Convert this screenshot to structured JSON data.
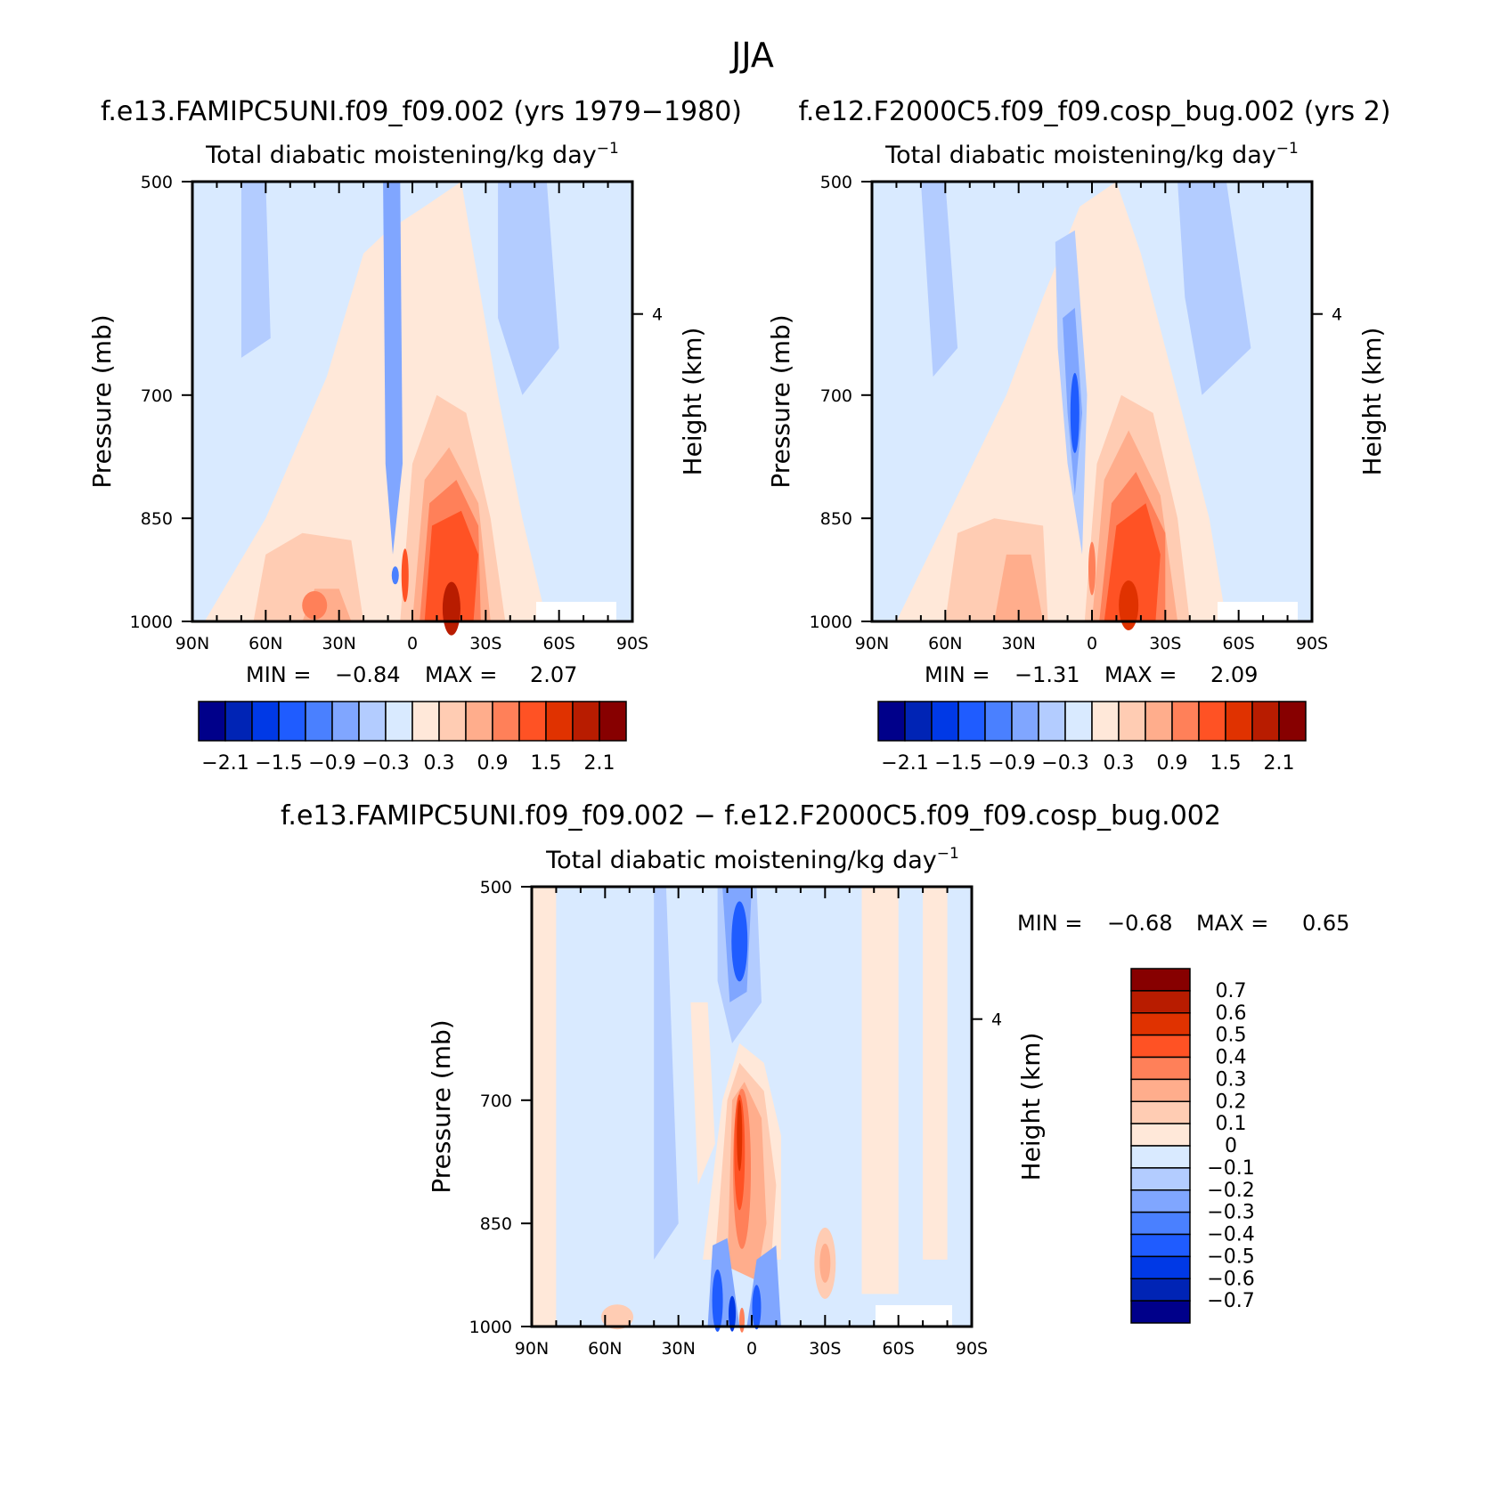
{
  "figure": {
    "title": "JJA"
  },
  "colors": {
    "panel_scale": [
      "#00008a",
      "#0024b5",
      "#0039e6",
      "#1f5cff",
      "#4a80ff",
      "#80a6ff",
      "#b3ccff",
      "#d9eaff",
      "#ffe8d9",
      "#ffccb3",
      "#ffad8c",
      "#ff8059",
      "#ff5224",
      "#e03200",
      "#b81c00",
      "#870000"
    ],
    "diff_scale": [
      "#00008a",
      "#0024b5",
      "#0039e6",
      "#1f5cff",
      "#4a80ff",
      "#80a6ff",
      "#b3ccff",
      "#d9eaff",
      "#ffe8d9",
      "#ffccb3",
      "#ffad8c",
      "#ff8059",
      "#ff5224",
      "#e03200",
      "#b81c00",
      "#870000"
    ]
  },
  "panels": [
    {
      "header": "f.e13.FAMIPC5UNI.f09_f09.002 (yrs 1979−1980)",
      "subtitle": "Total diabatic moistening/kg day",
      "subtitle_exp": "−1",
      "ylabel": "Pressure (mb)",
      "ylabel_right": "Height (km)",
      "min_label": "MIN =",
      "min_value": "−0.84",
      "max_label": "MAX =",
      "max_value": "2.07",
      "colorbar_labels": [
        "−2.1",
        "−1.5",
        "−0.9",
        "−0.3",
        "0.3",
        "0.9",
        "1.5",
        "2.1"
      ]
    },
    {
      "header": "f.e12.F2000C5.f09_f09.cosp_bug.002 (yrs 2)",
      "subtitle": "Total diabatic moistening/kg day",
      "subtitle_exp": "−1",
      "ylabel": "Pressure (mb)",
      "ylabel_right": "Height (km)",
      "min_label": "MIN =",
      "min_value": "−1.31",
      "max_label": "MAX =",
      "max_value": "2.09",
      "colorbar_labels": [
        "−2.1",
        "−1.5",
        "−0.9",
        "−0.3",
        "0.3",
        "0.9",
        "1.5",
        "2.1"
      ]
    },
    {
      "header": "f.e13.FAMIPC5UNI.f09_f09.002 − f.e12.F2000C5.f09_f09.cosp_bug.002",
      "subtitle": "Total diabatic moistening/kg day",
      "subtitle_exp": "−1",
      "ylabel": "Pressure (mb)",
      "ylabel_right": "Height (km)",
      "min_label": "MIN =",
      "min_value": "−0.68",
      "max_label": "MAX =",
      "max_value": "0.65",
      "colorbar_labels": [
        "0.7",
        "0.6",
        "0.5",
        "0.4",
        "0.3",
        "0.2",
        "0.1",
        "0",
        "−0.1",
        "−0.2",
        "−0.3",
        "−0.4",
        "−0.5",
        "−0.6",
        "−0.7"
      ]
    }
  ],
  "chart_data": [
    {
      "type": "heatmap",
      "title": "Total diabatic moistening/kg day⁻¹",
      "xticks": [
        "90N",
        "60N",
        "30N",
        "0",
        "30S",
        "60S",
        "90S"
      ],
      "yticks": [
        500,
        700,
        850,
        1000
      ],
      "ylim": [
        1000,
        500
      ],
      "right_axis_ticks": [
        4
      ],
      "contour_levels": [
        -2.1,
        -1.8,
        -1.5,
        -1.2,
        -0.9,
        -0.6,
        -0.3,
        0,
        0.3,
        0.6,
        0.9,
        1.2,
        1.5,
        1.8,
        2.1
      ],
      "min": -0.84,
      "max": 2.07,
      "features": [
        {
          "lat": 10,
          "p": 650,
          "value": -0.7
        },
        {
          "lat": -17,
          "p": 900,
          "value": 2.0
        },
        {
          "lat": 40,
          "p": 950,
          "value": 0.9
        },
        {
          "lat": -50,
          "p": 550,
          "value": -0.3
        }
      ]
    },
    {
      "type": "heatmap",
      "title": "Total diabatic moistening/kg day⁻¹",
      "xticks": [
        "90N",
        "60N",
        "30N",
        "0",
        "30S",
        "60S",
        "90S"
      ],
      "yticks": [
        500,
        700,
        850,
        1000
      ],
      "ylim": [
        1000,
        500
      ],
      "right_axis_ticks": [
        4
      ],
      "contour_levels": [
        -2.1,
        -1.8,
        -1.5,
        -1.2,
        -0.9,
        -0.6,
        -0.3,
        0,
        0.3,
        0.6,
        0.9,
        1.2,
        1.5,
        1.8,
        2.1
      ],
      "min": -1.31,
      "max": 2.09,
      "features": [
        {
          "lat": 7,
          "p": 720,
          "value": -1.3
        },
        {
          "lat": -20,
          "p": 880,
          "value": 2.0
        },
        {
          "lat": 30,
          "p": 920,
          "value": 1.0
        },
        {
          "lat": 60,
          "p": 550,
          "value": -0.3
        }
      ]
    },
    {
      "type": "heatmap",
      "title": "Total diabatic moistening/kg day⁻¹",
      "xticks": [
        "90N",
        "60N",
        "30N",
        "0",
        "30S",
        "60S",
        "90S"
      ],
      "yticks": [
        500,
        700,
        850,
        1000
      ],
      "ylim": [
        1000,
        500
      ],
      "right_axis_ticks": [
        4
      ],
      "contour_levels": [
        -0.7,
        -0.6,
        -0.5,
        -0.4,
        -0.3,
        -0.2,
        -0.1,
        0,
        0.1,
        0.2,
        0.3,
        0.4,
        0.5,
        0.6,
        0.7
      ],
      "min": -0.68,
      "max": 0.65,
      "features": [
        {
          "lat": 5,
          "p": 540,
          "value": -0.6
        },
        {
          "lat": 5,
          "p": 750,
          "value": 0.6
        },
        {
          "lat": 8,
          "p": 970,
          "value": -0.6
        },
        {
          "lat": -30,
          "p": 910,
          "value": 0.3
        }
      ]
    }
  ]
}
